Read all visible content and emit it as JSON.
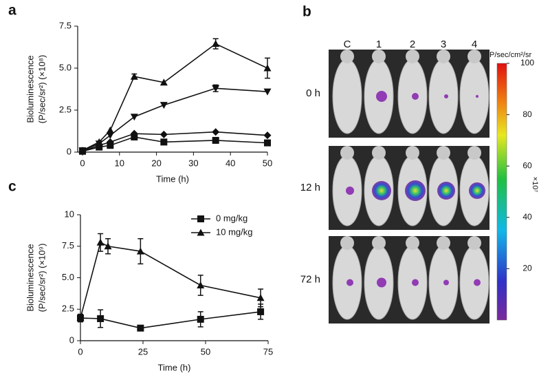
{
  "chart_data": [
    {
      "type": "line",
      "panel_label": "a",
      "x_label": "Time (h)",
      "y_label": [
        "Bioluminescence",
        "(P/sec/sr²) (×10⁸)"
      ],
      "x": [
        0,
        4.5,
        7.5,
        14,
        22,
        36,
        50
      ],
      "series": [
        {
          "marker": "square",
          "color": "#111111",
          "values": [
            0.05,
            0.3,
            0.4,
            0.9,
            0.6,
            0.7,
            0.55
          ],
          "errors": [
            null,
            null,
            null,
            null,
            null,
            null,
            null
          ]
        },
        {
          "marker": "diamond",
          "color": "#111111",
          "values": [
            0.05,
            0.4,
            0.6,
            1.1,
            1.05,
            1.2,
            1.0
          ],
          "errors": [
            null,
            null,
            null,
            null,
            null,
            null,
            null
          ]
        },
        {
          "marker": "triangle-down",
          "color": "#111111",
          "values": [
            0.1,
            0.5,
            1.0,
            2.1,
            2.8,
            3.8,
            3.6
          ],
          "errors": [
            null,
            null,
            null,
            null,
            null,
            0.2,
            null
          ]
        },
        {
          "marker": "triangle-up",
          "color": "#111111",
          "values": [
            0.1,
            0.6,
            1.3,
            4.5,
            4.15,
            6.45,
            5.0
          ],
          "errors": [
            null,
            null,
            null,
            0.15,
            null,
            0.3,
            0.6
          ]
        }
      ],
      "xlim": [
        -1.3,
        50
      ],
      "ylim": [
        0,
        7.5
      ],
      "xticks": [
        0,
        10,
        20,
        30,
        40,
        50
      ],
      "yticks": [
        0,
        2.5,
        {
          "value": 5,
          "label": "5.0"
        },
        7.5
      ],
      "grid": false
    },
    {
      "type": "line",
      "panel_label": "c",
      "x_label": "Time (h)",
      "y_label": [
        "Bioluminescence",
        "(P/sec/sr²) (×10⁹)"
      ],
      "series": [
        {
          "name": "0 mg/kg",
          "marker": "square",
          "color": "#111111",
          "x": [
            0,
            8,
            24,
            48,
            72
          ],
          "values": [
            1.8,
            1.75,
            1.0,
            1.7,
            2.3
          ],
          "errors": [
            0.3,
            0.7,
            0.1,
            0.6,
            0.6
          ]
        },
        {
          "name": "10 mg/kg",
          "marker": "triangle-up",
          "color": "#111111",
          "x": [
            0,
            8,
            11,
            24,
            48,
            72
          ],
          "values": [
            1.8,
            7.8,
            7.5,
            7.1,
            4.4,
            3.4
          ],
          "errors": [
            0.3,
            0.7,
            0.6,
            1.0,
            0.8,
            0.7
          ]
        }
      ],
      "xlim": [
        0,
        75
      ],
      "ylim": [
        0,
        10
      ],
      "xticks": [
        0,
        25,
        50,
        75
      ],
      "yticks": [
        0,
        2.5,
        {
          "value": 5,
          "label": "5.0"
        },
        7.5,
        10
      ],
      "legend": "upper right",
      "grid": false
    }
  ],
  "imaging": {
    "panel_label": "b",
    "columns": [
      "C",
      "1",
      "2",
      "3",
      "4"
    ],
    "rows": [
      "0 h",
      "12 h",
      "72 h"
    ],
    "colorbar": {
      "unit": "P/sec/cm²/sr",
      "scale_label": "×10⁷",
      "range": [
        0,
        100
      ],
      "ticks": [
        20,
        40,
        60,
        80,
        100
      ]
    }
  }
}
